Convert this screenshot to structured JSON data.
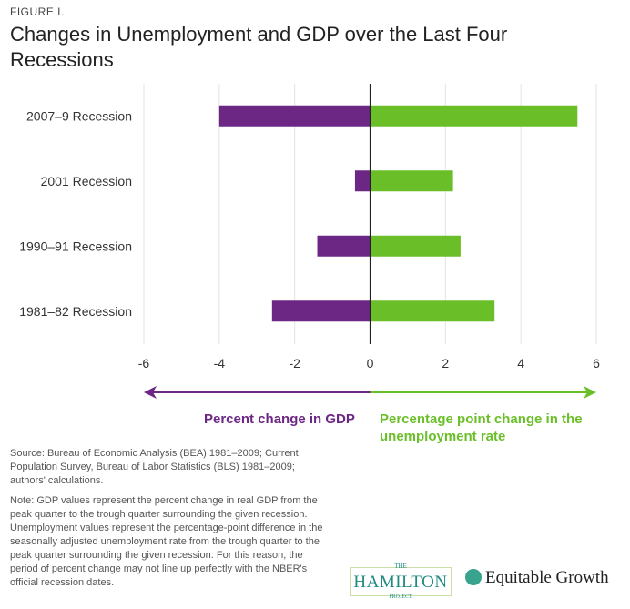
{
  "figure_label": "FIGURE I.",
  "chart_data": {
    "type": "bar",
    "orientation": "horizontal",
    "title": "Changes in Unemployment and GDP over the Last Four Recessions",
    "categories": [
      "2007–9 Recession",
      "2001 Recession",
      "1990–91 Recession",
      "1981–82 Recession"
    ],
    "series": [
      {
        "name": "Percent change in GDP",
        "values": [
          -4.0,
          -0.4,
          -1.4,
          -2.6
        ],
        "color": "#6c2784"
      },
      {
        "name": "Percentage point change in the unemployment rate",
        "values": [
          5.5,
          2.2,
          2.4,
          3.3
        ],
        "color": "#6abf29"
      }
    ],
    "xlim": [
      -6,
      6
    ],
    "xticks": [
      "-6",
      "-4",
      "-2",
      "0",
      "2",
      "4",
      "6"
    ],
    "grid": true
  },
  "source": "Source: Bureau of Economic Analysis (BEA) 1981–2009; Current Population Survey, Bureau of Labor Statistics (BLS) 1981–2009; authors' calculations.",
  "note": "Note: GDP values represent the percent change in real GDP from the peak quarter to the trough quarter surrounding the given recession. Unemployment values represent the percentage-point difference in the seasonally adjusted unemployment rate from the trough quarter to the peak quarter surrounding the given recession. For this reason, the period of percent change may not line up perfectly with the NBER's official recession dates.",
  "logos": {
    "hamilton": {
      "top": "THE",
      "main": "HAMILTON",
      "bottom": "PROJECT"
    },
    "equitable_growth": "Equitable Growth"
  }
}
